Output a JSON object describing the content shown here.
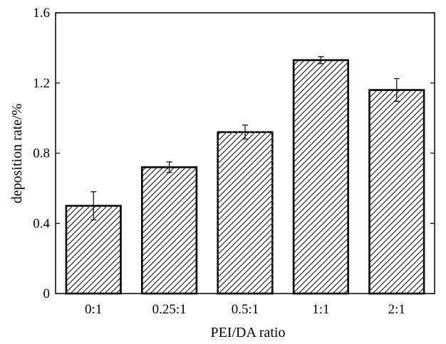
{
  "chart_data": {
    "type": "bar",
    "categories": [
      "0:1",
      "0.25:1",
      "0.5:1",
      "1:1",
      "2:1"
    ],
    "values": [
      0.5,
      0.72,
      0.92,
      1.33,
      1.16
    ],
    "errors": [
      0.08,
      0.03,
      0.04,
      0.02,
      0.065
    ],
    "xlabel": "PEI/DA ratio",
    "ylabel": "deposition rate/%",
    "ylim": [
      0,
      1.6
    ],
    "yticks": [
      "0",
      "0.4",
      "0.8",
      "1.2",
      "1.6"
    ],
    "bar_pattern": "diagonal-hatch",
    "bar_fill": "#ffffff",
    "bar_edge_color": "#000000",
    "grid": false,
    "legend": "none"
  }
}
